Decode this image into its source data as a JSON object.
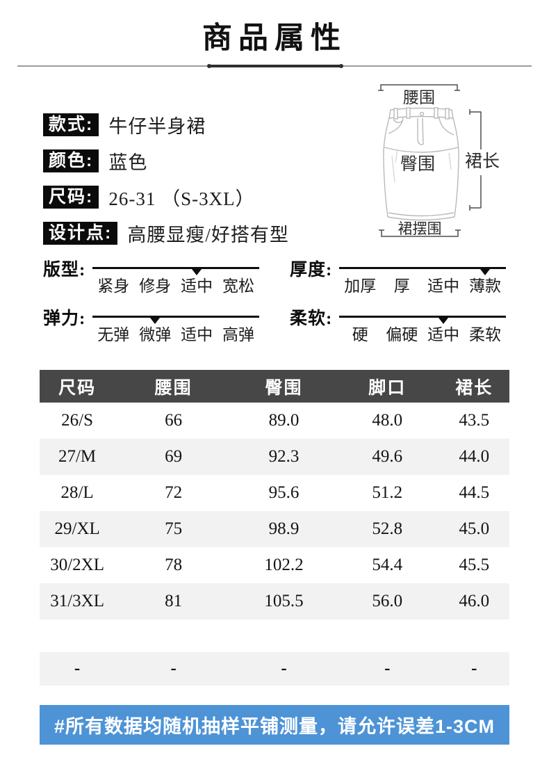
{
  "title": "商品属性",
  "product_info": [
    {
      "label": "款式:",
      "value": "牛仔半身裙"
    },
    {
      "label": "颜色:",
      "value": "蓝色"
    },
    {
      "label": "尺码:",
      "value": "26-31 （S-3XL）"
    },
    {
      "label": "设计点:",
      "value": "高腰显瘦/好搭有型"
    }
  ],
  "diagram": {
    "waist_label": "腰围",
    "hip_label": "臀围",
    "length_label": "裙长",
    "hem_label": "裙摆围"
  },
  "scales": [
    {
      "label": "版型:",
      "options": [
        "紧身",
        "修身",
        "适中",
        "宽松"
      ],
      "selected": "适中"
    },
    {
      "label": "厚度:",
      "options": [
        "加厚",
        "厚",
        "适中",
        "薄款"
      ],
      "selected": "薄款"
    },
    {
      "label": "弹力:",
      "options": [
        "无弹",
        "微弹",
        "适中",
        "高弹"
      ],
      "selected": "微弹"
    },
    {
      "label": "柔软:",
      "options": [
        "硬",
        "偏硬",
        "适中",
        "柔软"
      ],
      "selected": "适中"
    }
  ],
  "size_table": {
    "headers": [
      "尺码",
      "腰围",
      "臀围",
      "脚口",
      "裙长"
    ],
    "rows": [
      [
        "26/S",
        "66",
        "89.0",
        "48.0",
        "43.5"
      ],
      [
        "27/M",
        "69",
        "92.3",
        "49.6",
        "44.0"
      ],
      [
        "28/L",
        "72",
        "95.6",
        "51.2",
        "44.5"
      ],
      [
        "29/XL",
        "75",
        "98.9",
        "52.8",
        "45.0"
      ],
      [
        "30/2XL",
        "78",
        "102.2",
        "54.4",
        "45.5"
      ],
      [
        "31/3XL",
        "81",
        "105.5",
        "56.0",
        "46.0"
      ],
      [
        "",
        "",
        "",
        "",
        ""
      ],
      [
        "-",
        "-",
        "-",
        "-",
        "-"
      ]
    ]
  },
  "notice": "#所有数据均随机抽样平铺测量，请允许误差1-3CM",
  "colors": {
    "banner_blue": "#4d93d6",
    "table_header_gray": "#474747",
    "row_alt_gray": "#f2f2f2",
    "badge_black": "#0b0b0b"
  }
}
